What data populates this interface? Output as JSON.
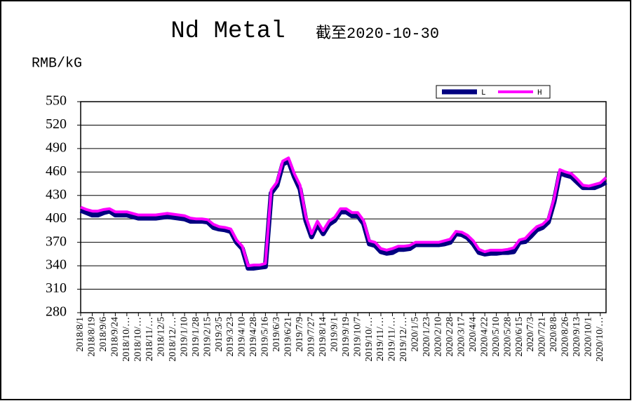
{
  "chart_data": {
    "type": "line",
    "title": "Nd Metal",
    "subtitle": "截至2020-10-30",
    "y_label": "RMB/kG",
    "categories": [
      "2018/8/1",
      null,
      "2018/8/19",
      null,
      "2018/9/6",
      null,
      "2018/9/24",
      null,
      "2018/10/…",
      null,
      "2018/10/…",
      null,
      "2018/11/…",
      null,
      "2018/12/5",
      null,
      "2018/12/…",
      null,
      "2019/1/10",
      null,
      "2019/1/28",
      null,
      "2019/2/15",
      null,
      "2019/3/5",
      null,
      "2019/3/23",
      null,
      "2019/4/10",
      null,
      "2019/4/28",
      null,
      "2019/5/16",
      null,
      "2019/6/3",
      null,
      "2019/6/21",
      null,
      "2019/7/9",
      null,
      "2019/7/27",
      null,
      "2019/8/14",
      null,
      "2019/9/1",
      null,
      "2019/9/19",
      null,
      "2019/10/7",
      null,
      "2019/10/…",
      null,
      "2019/11/…",
      null,
      "2019/11/…",
      null,
      "2019/12/…",
      null,
      "2020/1/5",
      null,
      "2020/1/23",
      null,
      "2020/2/10",
      null,
      "2020/2/28",
      null,
      "2020/3/17",
      null,
      "2020/4/4",
      null,
      "2020/4/22",
      null,
      "2020/5/10",
      null,
      "2020/5/28",
      null,
      "2020/6/15",
      null,
      "2020/7/3",
      null,
      "2020/7/21",
      null,
      "2020/8/8",
      null,
      "2020/8/26",
      null,
      "2020/9/13",
      null,
      "2020/10/1",
      null,
      "2020/10/…",
      null
    ],
    "series": [
      {
        "name": "L",
        "color": "#000080",
        "values": [
          411,
          408,
          405,
          405,
          408,
          410,
          405,
          405,
          405,
          403,
          401,
          401,
          401,
          401,
          402,
          403,
          402,
          401,
          400,
          397,
          397,
          397,
          396,
          389,
          387,
          386,
          384,
          370,
          362,
          337,
          337,
          338,
          339,
          433,
          443,
          470,
          474,
          454,
          438,
          398,
          377,
          393,
          381,
          393,
          398,
          409,
          409,
          404,
          404,
          394,
          368,
          366,
          358,
          356,
          357,
          361,
          361,
          362,
          367,
          367,
          367,
          367,
          367,
          368,
          370,
          381,
          380,
          376,
          368,
          357,
          355,
          356,
          356,
          357,
          357,
          358,
          370,
          371,
          378,
          386,
          389,
          396,
          422,
          459,
          456,
          454,
          447,
          440,
          440,
          440,
          443,
          447
        ]
      },
      {
        "name": "H",
        "color": "#ff00ff",
        "values": [
          415,
          412,
          410,
          410,
          412,
          413,
          409,
          409,
          409,
          407,
          405,
          405,
          405,
          405,
          406,
          407,
          406,
          405,
          404,
          401,
          400,
          400,
          399,
          393,
          390,
          389,
          387,
          373,
          365,
          340,
          341,
          341,
          343,
          437,
          447,
          474,
          478,
          458,
          443,
          403,
          381,
          397,
          385,
          397,
          402,
          413,
          413,
          408,
          408,
          398,
          372,
          370,
          362,
          360,
          362,
          365,
          365,
          366,
          370,
          370,
          370,
          370,
          370,
          372,
          374,
          384,
          383,
          379,
          372,
          361,
          358,
          360,
          360,
          360,
          361,
          363,
          373,
          375,
          383,
          390,
          393,
          400,
          426,
          463,
          460,
          458,
          451,
          443,
          442,
          444,
          446,
          453
        ]
      }
    ],
    "ylim": [
      280,
      550
    ],
    "yticks": [
      280,
      310,
      340,
      370,
      400,
      430,
      460,
      490,
      520,
      550
    ],
    "grid": true,
    "legend": "top-right"
  }
}
